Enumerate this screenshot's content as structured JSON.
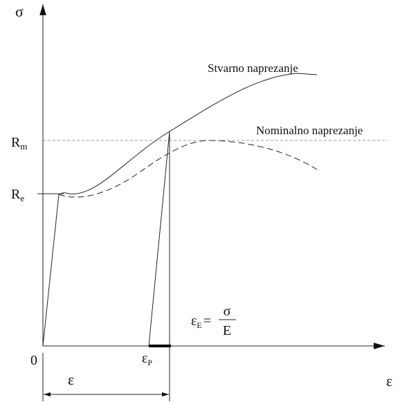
{
  "axes": {
    "y_label": "σ",
    "x_label": "ε",
    "origin": "0"
  },
  "levels": {
    "rm": {
      "main": "R",
      "sub": "m"
    },
    "re": {
      "main": "R",
      "sub": "e"
    }
  },
  "curves": {
    "true_stress": "Stvarno naprezanje",
    "nominal_stress": "Nominalno naprezanje"
  },
  "strains": {
    "plastic": {
      "main": "ε",
      "sub": "P"
    },
    "elastic": {
      "main": "ε",
      "sub": "E",
      "equals": "=",
      "numerator": "σ",
      "denominator": "E"
    },
    "total": "ε"
  }
}
